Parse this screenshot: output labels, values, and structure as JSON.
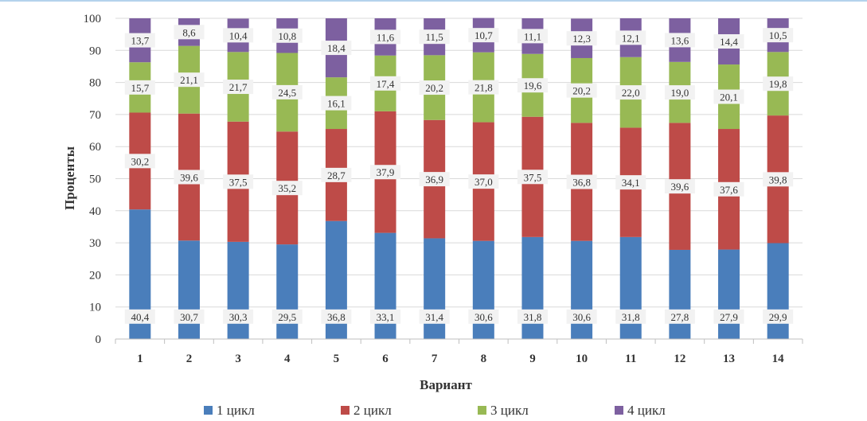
{
  "chart_data": {
    "type": "bar",
    "stacked": true,
    "categories": [
      "1",
      "2",
      "3",
      "4",
      "5",
      "6",
      "7",
      "8",
      "9",
      "10",
      "11",
      "12",
      "13",
      "14"
    ],
    "series": [
      {
        "name": "1 цикл",
        "color": "#4a7ebb",
        "values": [
          40.4,
          30.7,
          30.3,
          29.5,
          36.8,
          33.1,
          31.4,
          30.6,
          31.8,
          30.6,
          31.8,
          27.8,
          27.9,
          29.9
        ]
      },
      {
        "name": "2 цикл",
        "color": "#be4b48",
        "values": [
          30.2,
          39.6,
          37.5,
          35.2,
          28.7,
          37.9,
          36.9,
          37.0,
          37.5,
          36.8,
          34.1,
          39.6,
          37.6,
          39.8
        ]
      },
      {
        "name": "3 цикл",
        "color": "#98b954",
        "values": [
          15.7,
          21.1,
          21.7,
          24.5,
          16.1,
          17.4,
          20.2,
          21.8,
          19.6,
          20.2,
          22.0,
          19.0,
          20.1,
          19.8
        ]
      },
      {
        "name": "4 цикл",
        "color": "#7d60a0",
        "values": [
          13.7,
          8.6,
          10.4,
          10.8,
          18.4,
          11.6,
          11.5,
          10.7,
          11.1,
          12.3,
          12.1,
          13.6,
          14.4,
          10.5
        ]
      }
    ],
    "xlabel": "Вариант",
    "ylabel": "Проценты",
    "ylim": [
      0,
      100
    ],
    "yticks": [
      "0",
      "10",
      "20",
      "30",
      "40",
      "50",
      "60",
      "70",
      "80",
      "90",
      "100"
    ],
    "grid": true,
    "legend": "bottom",
    "decimal_separator": ","
  }
}
